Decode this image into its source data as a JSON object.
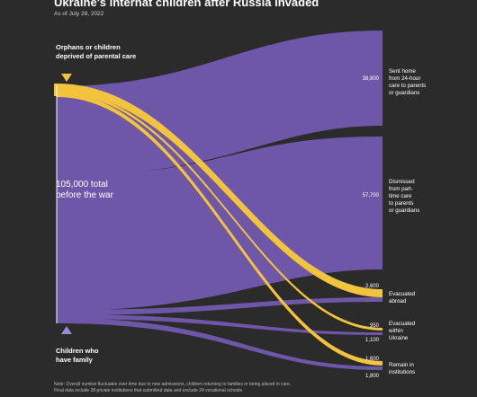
{
  "header": {
    "title": "Ukraine's internat children after Russia invaded",
    "subtitle": "As of July 28, 2022"
  },
  "sources": {
    "orphans_label_line1": "Orphans or children",
    "orphans_label_line2": "deprived of parental care",
    "family_label_line1": "Children who",
    "family_label_line2": "have family",
    "total_line1": "105,000 total",
    "total_line2": "before the war"
  },
  "outcomes": {
    "sent_home": {
      "value": "38,800",
      "label_lines": [
        "Sent home",
        "from 24-hour",
        "care to parents",
        "or guardians"
      ]
    },
    "dismissed": {
      "value": "57,700",
      "label_lines": [
        "Dismissed",
        "from part-",
        "time care",
        "to parents",
        "or guardians"
      ]
    },
    "abroad": {
      "orphan_value": "2,600",
      "label_lines": [
        "Evacuated",
        "abroad"
      ]
    },
    "within": {
      "orphan_value": "950",
      "family_value": "1,100",
      "label_lines": [
        "Evacuated",
        "within",
        "Ukraine"
      ]
    },
    "institutions": {
      "orphan_value": "1,600",
      "family_value": "1,800",
      "label_lines": [
        "Remain in",
        "institutions"
      ]
    }
  },
  "note": {
    "line1": "Note: Overall number fluctuates over time due to new admissions, children returning to families or being placed in care.",
    "line2": "Final data include 38 private institutions that submitted data and exclude 24 vocational schools"
  },
  "colors": {
    "background": "#2b2b2b",
    "family_flow": "#6e57a8",
    "orphan_flow": "#f2c43d",
    "family_marker": "#9b8ad0"
  }
}
